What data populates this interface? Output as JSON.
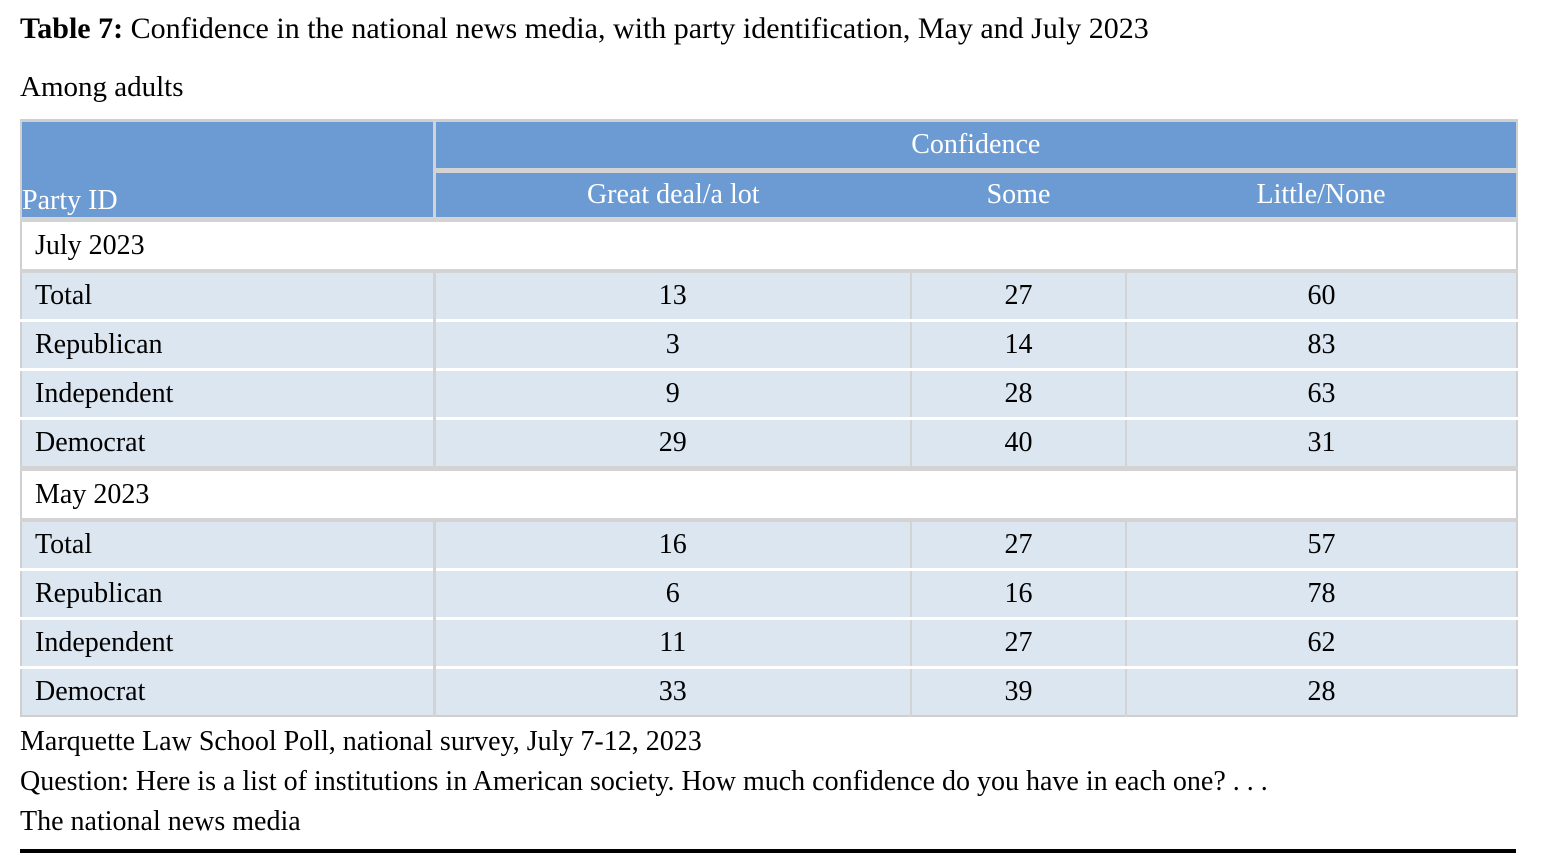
{
  "title": {
    "label": "Table 7:",
    "text": " Confidence in the national news media, with party identification, May and July 2023"
  },
  "subtitle": "Among adults",
  "table": {
    "row_header": "Party ID",
    "col_group_header": "Confidence",
    "columns": [
      "Great deal/a lot",
      "Some",
      "Little/None"
    ],
    "sections": [
      {
        "label": "July 2023",
        "rows": [
          {
            "label": "Total",
            "values": [
              "13",
              "27",
              "60"
            ]
          },
          {
            "label": "Republican",
            "values": [
              "3",
              "14",
              "83"
            ]
          },
          {
            "label": "Independent",
            "values": [
              "9",
              "28",
              "63"
            ]
          },
          {
            "label": "Democrat",
            "values": [
              "29",
              "40",
              "31"
            ]
          }
        ]
      },
      {
        "label": "May 2023",
        "rows": [
          {
            "label": "Total",
            "values": [
              "16",
              "27",
              "57"
            ]
          },
          {
            "label": "Republican",
            "values": [
              "6",
              "16",
              "78"
            ]
          },
          {
            "label": "Independent",
            "values": [
              "11",
              "27",
              "62"
            ]
          },
          {
            "label": "Democrat",
            "values": [
              "33",
              "39",
              "28"
            ]
          }
        ]
      }
    ]
  },
  "footer": {
    "source": "Marquette Law School Poll, national survey, July 7-12, 2023",
    "question": "Question: Here is a list of institutions in American society. How much confidence do you have in each one? . . .",
    "question_subject": "The national news media"
  },
  "colors": {
    "header_blue": "#6b9bd2",
    "row_light_blue": "#dce6f1",
    "grid_gray": "#d3d3d3"
  }
}
